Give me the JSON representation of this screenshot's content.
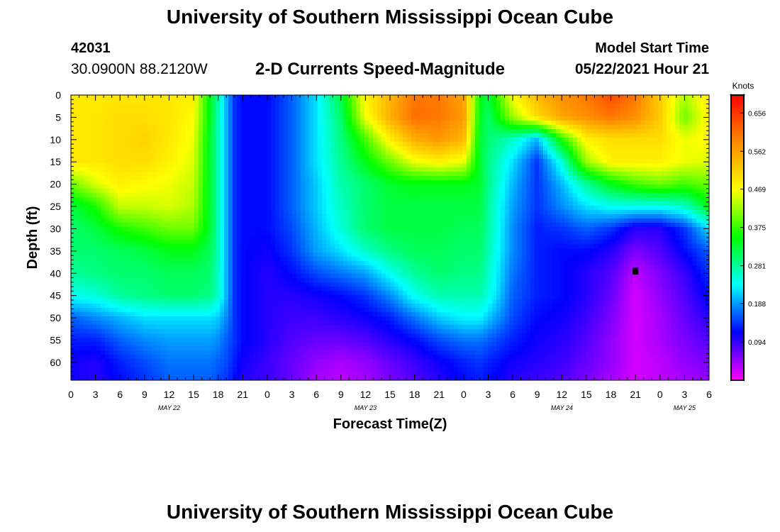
{
  "header": {
    "title": "University of Southern Mississippi Ocean Cube",
    "station_id": "42031",
    "location": "30.0900N  88.2120W",
    "chart_title": "2-D Currents Speed-Magnitude",
    "model_start_label": "Model Start Time",
    "model_start_value": "05/22/2021 Hour 21"
  },
  "footer": {
    "title": "University of Southern Mississippi Ocean Cube"
  },
  "colors": {
    "colormap": [
      "#ff00ff",
      "#0000ff",
      "#00ffff",
      "#00ff00",
      "#ffff00",
      "#ff8c00",
      "#ff0000"
    ],
    "marker": "#000000"
  },
  "chart_data": {
    "type": "heatmap",
    "title": "2-D Currents Speed-Magnitude",
    "xlabel": "Forecast Time(Z)",
    "ylabel": "Depth (ft)",
    "x_tick_labels": [
      "0",
      "3",
      "6",
      "9",
      "12",
      "15",
      "18",
      "21",
      "0",
      "3",
      "6",
      "9",
      "12",
      "15",
      "18",
      "21",
      "0",
      "3",
      "6",
      "9",
      "12",
      "15",
      "18",
      "21",
      "0",
      "3",
      "6"
    ],
    "x_range_hours": [
      0,
      78
    ],
    "date_labels": [
      {
        "label": "MAY 22",
        "hour": 12
      },
      {
        "label": "MAY 23",
        "hour": 36
      },
      {
        "label": "MAY 24",
        "hour": 60
      },
      {
        "label": "MAY 25",
        "hour": 75
      }
    ],
    "y_tick_labels": [
      "0",
      "5",
      "10",
      "15",
      "20",
      "25",
      "30",
      "35",
      "40",
      "45",
      "50",
      "55",
      "60"
    ],
    "y_range_ft": [
      0,
      64
    ],
    "y_inverted": true,
    "colorbar": {
      "label": "Knots",
      "tick_labels": [
        "0.656",
        "0.562",
        "0.469",
        "0.375",
        "0.281",
        "0.188",
        "0.094"
      ],
      "range": [
        0.0,
        0.7
      ]
    },
    "marker": {
      "hour": 69,
      "depth_ft": 39.5
    },
    "grid": false,
    "legend": "right",
    "field": {
      "hours": [
        0,
        3,
        6,
        9,
        12,
        15,
        17,
        18,
        19,
        20,
        21,
        24,
        27,
        30,
        33,
        36,
        39,
        42,
        45,
        48,
        50,
        51,
        54,
        57,
        60,
        63,
        66,
        69,
        72,
        75,
        78
      ],
      "depths_ft": [
        0,
        5,
        10,
        15,
        20,
        25,
        30,
        35,
        40,
        45,
        50,
        55,
        60,
        64
      ],
      "values": [
        [
          0.49,
          0.49,
          0.49,
          0.49,
          0.49,
          0.48,
          0.34,
          0.28,
          0.2,
          0.14,
          0.12,
          0.12,
          0.16,
          0.22,
          0.32,
          0.48,
          0.54,
          0.6,
          0.6,
          0.56,
          0.35,
          0.32,
          0.47,
          0.54,
          0.58,
          0.6,
          0.64,
          0.6,
          0.52,
          0.43,
          0.49
        ],
        [
          0.49,
          0.49,
          0.5,
          0.5,
          0.49,
          0.47,
          0.34,
          0.27,
          0.2,
          0.14,
          0.12,
          0.12,
          0.16,
          0.22,
          0.3,
          0.46,
          0.55,
          0.61,
          0.6,
          0.57,
          0.34,
          0.3,
          0.42,
          0.5,
          0.56,
          0.58,
          0.6,
          0.58,
          0.52,
          0.4,
          0.48
        ],
        [
          0.49,
          0.49,
          0.5,
          0.51,
          0.49,
          0.46,
          0.33,
          0.27,
          0.2,
          0.14,
          0.12,
          0.12,
          0.16,
          0.22,
          0.29,
          0.38,
          0.48,
          0.55,
          0.57,
          0.54,
          0.33,
          0.3,
          0.26,
          0.2,
          0.36,
          0.48,
          0.5,
          0.5,
          0.5,
          0.46,
          0.47
        ],
        [
          0.49,
          0.49,
          0.5,
          0.5,
          0.48,
          0.45,
          0.33,
          0.27,
          0.2,
          0.14,
          0.12,
          0.12,
          0.16,
          0.22,
          0.28,
          0.34,
          0.4,
          0.46,
          0.48,
          0.46,
          0.33,
          0.29,
          0.22,
          0.14,
          0.25,
          0.42,
          0.48,
          0.48,
          0.48,
          0.46,
          0.45
        ],
        [
          0.4,
          0.45,
          0.48,
          0.47,
          0.46,
          0.44,
          0.33,
          0.27,
          0.2,
          0.14,
          0.12,
          0.12,
          0.16,
          0.21,
          0.27,
          0.3,
          0.33,
          0.34,
          0.34,
          0.34,
          0.33,
          0.29,
          0.2,
          0.14,
          0.2,
          0.28,
          0.34,
          0.38,
          0.4,
          0.38,
          0.4
        ],
        [
          0.32,
          0.36,
          0.44,
          0.44,
          0.45,
          0.43,
          0.33,
          0.27,
          0.2,
          0.14,
          0.12,
          0.12,
          0.16,
          0.21,
          0.26,
          0.3,
          0.32,
          0.32,
          0.32,
          0.32,
          0.32,
          0.28,
          0.19,
          0.14,
          0.18,
          0.22,
          0.24,
          0.24,
          0.24,
          0.26,
          0.34
        ],
        [
          0.3,
          0.32,
          0.36,
          0.38,
          0.4,
          0.4,
          0.33,
          0.27,
          0.2,
          0.14,
          0.12,
          0.12,
          0.15,
          0.2,
          0.25,
          0.3,
          0.32,
          0.32,
          0.32,
          0.31,
          0.31,
          0.28,
          0.18,
          0.13,
          0.14,
          0.16,
          0.14,
          0.1,
          0.1,
          0.14,
          0.22
        ],
        [
          0.3,
          0.3,
          0.31,
          0.32,
          0.34,
          0.34,
          0.31,
          0.27,
          0.2,
          0.14,
          0.12,
          0.11,
          0.14,
          0.19,
          0.22,
          0.26,
          0.29,
          0.31,
          0.31,
          0.3,
          0.3,
          0.27,
          0.18,
          0.13,
          0.12,
          0.12,
          0.1,
          0.06,
          0.08,
          0.12,
          0.16
        ],
        [
          0.28,
          0.29,
          0.3,
          0.3,
          0.31,
          0.31,
          0.3,
          0.26,
          0.2,
          0.14,
          0.12,
          0.1,
          0.12,
          0.15,
          0.17,
          0.19,
          0.24,
          0.28,
          0.3,
          0.29,
          0.29,
          0.26,
          0.17,
          0.13,
          0.12,
          0.1,
          0.08,
          0.03,
          0.06,
          0.09,
          0.14
        ],
        [
          0.24,
          0.25,
          0.28,
          0.29,
          0.3,
          0.3,
          0.29,
          0.26,
          0.2,
          0.14,
          0.12,
          0.1,
          0.1,
          0.11,
          0.12,
          0.14,
          0.18,
          0.24,
          0.27,
          0.27,
          0.27,
          0.25,
          0.16,
          0.13,
          0.12,
          0.1,
          0.07,
          0.02,
          0.05,
          0.08,
          0.12
        ],
        [
          0.16,
          0.18,
          0.2,
          0.22,
          0.22,
          0.22,
          0.22,
          0.21,
          0.18,
          0.14,
          0.12,
          0.1,
          0.09,
          0.09,
          0.1,
          0.11,
          0.13,
          0.17,
          0.21,
          0.23,
          0.23,
          0.21,
          0.15,
          0.12,
          0.11,
          0.09,
          0.06,
          0.02,
          0.04,
          0.07,
          0.1
        ],
        [
          0.13,
          0.13,
          0.16,
          0.18,
          0.19,
          0.19,
          0.19,
          0.18,
          0.16,
          0.14,
          0.12,
          0.1,
          0.08,
          0.07,
          0.07,
          0.08,
          0.1,
          0.12,
          0.15,
          0.17,
          0.17,
          0.16,
          0.13,
          0.11,
          0.1,
          0.08,
          0.05,
          0.02,
          0.04,
          0.06,
          0.08
        ],
        [
          0.11,
          0.1,
          0.13,
          0.15,
          0.17,
          0.17,
          0.17,
          0.16,
          0.15,
          0.13,
          0.11,
          0.09,
          0.07,
          0.05,
          0.04,
          0.05,
          0.07,
          0.09,
          0.11,
          0.13,
          0.14,
          0.13,
          0.11,
          0.1,
          0.09,
          0.07,
          0.05,
          0.02,
          0.03,
          0.05,
          0.06
        ],
        [
          0.11,
          0.1,
          0.12,
          0.14,
          0.16,
          0.16,
          0.16,
          0.15,
          0.14,
          0.12,
          0.1,
          0.09,
          0.07,
          0.04,
          0.03,
          0.04,
          0.06,
          0.08,
          0.1,
          0.12,
          0.13,
          0.12,
          0.1,
          0.09,
          0.08,
          0.06,
          0.04,
          0.02,
          0.03,
          0.04,
          0.05
        ]
      ]
    }
  }
}
